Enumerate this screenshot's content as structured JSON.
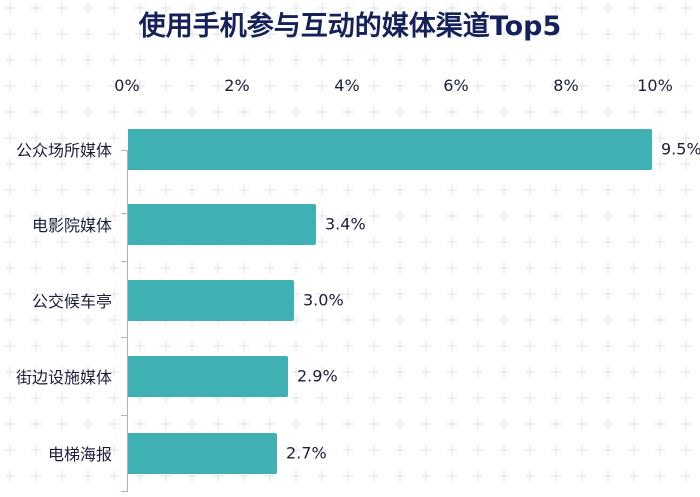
{
  "chart_data": {
    "type": "bar",
    "orientation": "horizontal",
    "title": "使用手机参与互动的媒体渠道Top5",
    "categories": [
      "公众场所媒体",
      "电影院媒体",
      "公交候车亭",
      "街边设施媒体",
      "电梯海报"
    ],
    "values": [
      9.5,
      3.4,
      3.0,
      2.9,
      2.7
    ],
    "value_labels": [
      "9.5%",
      "3.4%",
      "3.0%",
      "2.9%",
      "2.7%"
    ],
    "xlabel": "",
    "ylabel": "",
    "xlim": [
      0,
      10
    ],
    "x_ticks": [
      "0%",
      "2%",
      "4%",
      "6%",
      "8%",
      "10%"
    ],
    "x_axis_position": "top",
    "grid": false,
    "legend": null,
    "bar_color": "#3fb1b5"
  },
  "colors": {
    "title": "#14215a",
    "bar": "#3fb1b5",
    "text": "#1a1f3a",
    "axis": "#aab4c8",
    "background_cross": "#e3e6ec"
  }
}
